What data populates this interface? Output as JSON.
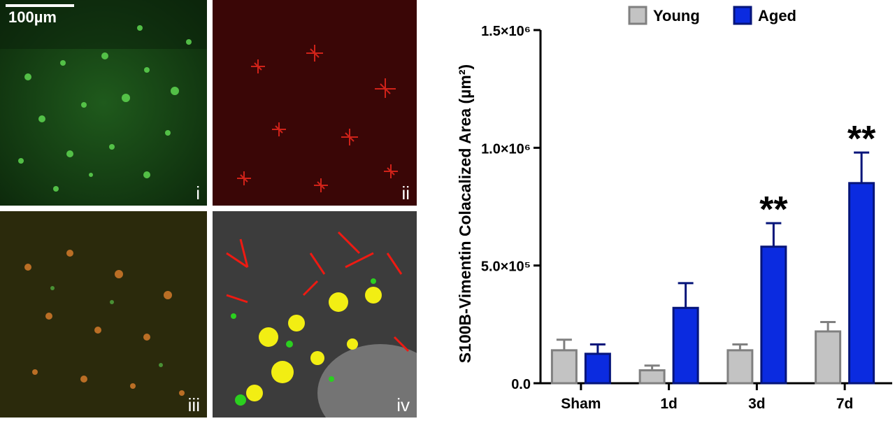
{
  "micrograph_panels": {
    "scalebar": "100µm",
    "labels": [
      "i",
      "ii",
      "iii",
      "iv"
    ]
  },
  "colors": {
    "young": "#c3c3c3",
    "young_edge": "#808080",
    "aged": "#0b2be0",
    "aged_edge": "#06157a"
  },
  "chart_data": {
    "type": "bar",
    "ylabel": "S100B-Vimentin Colacalized Area (µm²)",
    "xlabel": "",
    "categories": [
      "Sham",
      "1d",
      "3d",
      "7d"
    ],
    "ylim": [
      0,
      1500000
    ],
    "yticks": [
      0,
      500000,
      1000000,
      1500000
    ],
    "ytick_labels": [
      "0.0",
      "5.0×10⁵",
      "1.0×10⁶",
      "1.5×10⁶"
    ],
    "legend_position": "top",
    "series": [
      {
        "name": "Young",
        "values": [
          140000,
          55000,
          140000,
          220000
        ],
        "errors": [
          45000,
          20000,
          25000,
          40000
        ]
      },
      {
        "name": "Aged",
        "values": [
          125000,
          320000,
          580000,
          850000
        ],
        "errors": [
          40000,
          105000,
          100000,
          130000
        ]
      }
    ],
    "annotations": [
      {
        "category": "3d",
        "series": "Aged",
        "text": "**"
      },
      {
        "category": "7d",
        "series": "Aged",
        "text": "**"
      }
    ]
  }
}
